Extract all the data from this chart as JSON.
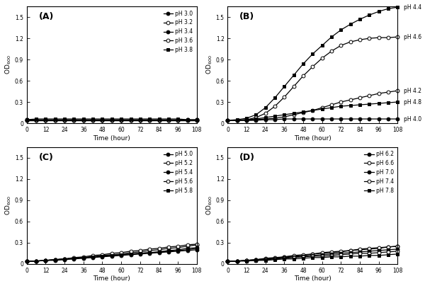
{
  "time": [
    0,
    6,
    12,
    18,
    24,
    30,
    36,
    42,
    48,
    54,
    60,
    66,
    72,
    78,
    84,
    90,
    96,
    102,
    108
  ],
  "panel_A": {
    "label": "(A)",
    "ylabel": "OD$_{600}$",
    "xlabel": "Time (hour)",
    "ylim": [
      0,
      1.65
    ],
    "yticks": [
      0,
      0.3,
      0.6,
      0.9,
      1.2,
      1.5
    ],
    "legend_loc": "upper right",
    "inline_labels": false,
    "series": [
      {
        "name": "pH 3.0",
        "marker": "o",
        "filled": true,
        "data": [
          0.04,
          0.04,
          0.04,
          0.04,
          0.04,
          0.04,
          0.04,
          0.04,
          0.04,
          0.04,
          0.04,
          0.04,
          0.04,
          0.04,
          0.04,
          0.04,
          0.04,
          0.04,
          0.04
        ]
      },
      {
        "name": "pH 3.2",
        "marker": "o",
        "filled": false,
        "data": [
          0.04,
          0.04,
          0.04,
          0.04,
          0.04,
          0.04,
          0.04,
          0.04,
          0.04,
          0.04,
          0.04,
          0.04,
          0.04,
          0.04,
          0.04,
          0.04,
          0.04,
          0.04,
          0.04
        ]
      },
      {
        "name": "pH 3.4",
        "marker": "o",
        "filled": true,
        "data": [
          0.05,
          0.05,
          0.05,
          0.05,
          0.05,
          0.05,
          0.05,
          0.05,
          0.05,
          0.05,
          0.05,
          0.05,
          0.05,
          0.05,
          0.05,
          0.05,
          0.05,
          0.05,
          0.05
        ]
      },
      {
        "name": "pH 3.6",
        "marker": "o",
        "filled": false,
        "data": [
          0.05,
          0.05,
          0.05,
          0.05,
          0.05,
          0.05,
          0.05,
          0.05,
          0.05,
          0.05,
          0.05,
          0.05,
          0.05,
          0.05,
          0.05,
          0.05,
          0.05,
          0.05,
          0.05
        ]
      },
      {
        "name": "pH 3.8",
        "marker": "s",
        "filled": true,
        "data": [
          0.05,
          0.06,
          0.06,
          0.06,
          0.06,
          0.06,
          0.06,
          0.06,
          0.06,
          0.06,
          0.06,
          0.06,
          0.06,
          0.06,
          0.06,
          0.06,
          0.06,
          0.05,
          0.05
        ]
      }
    ]
  },
  "panel_B": {
    "label": "(B)",
    "ylabel": "OD$_{600}$",
    "xlabel": "Time (hour)",
    "ylim": [
      0,
      1.65
    ],
    "yticks": [
      0,
      0.3,
      0.6,
      0.9,
      1.2,
      1.5
    ],
    "legend_loc": "upper right",
    "inline_labels": true,
    "series": [
      {
        "name": "pH 4.4",
        "marker": "s",
        "filled": true,
        "data": [
          0.04,
          0.05,
          0.07,
          0.12,
          0.22,
          0.36,
          0.52,
          0.68,
          0.84,
          0.98,
          1.1,
          1.22,
          1.32,
          1.4,
          1.47,
          1.53,
          1.58,
          1.62,
          1.64
        ]
      },
      {
        "name": "pH 4.6",
        "marker": "o",
        "filled": false,
        "data": [
          0.04,
          0.04,
          0.05,
          0.08,
          0.14,
          0.24,
          0.37,
          0.52,
          0.67,
          0.8,
          0.92,
          1.02,
          1.1,
          1.15,
          1.18,
          1.2,
          1.21,
          1.21,
          1.22
        ]
      },
      {
        "name": "pH 4.2",
        "marker": "o",
        "filled": false,
        "data": [
          0.04,
          0.04,
          0.04,
          0.05,
          0.06,
          0.07,
          0.09,
          0.12,
          0.15,
          0.18,
          0.22,
          0.26,
          0.3,
          0.33,
          0.36,
          0.39,
          0.42,
          0.44,
          0.46
        ]
      },
      {
        "name": "pH 4.8",
        "marker": "s",
        "filled": true,
        "data": [
          0.04,
          0.04,
          0.05,
          0.06,
          0.08,
          0.1,
          0.12,
          0.14,
          0.16,
          0.18,
          0.2,
          0.22,
          0.24,
          0.25,
          0.26,
          0.27,
          0.28,
          0.29,
          0.3
        ]
      },
      {
        "name": "pH 4.0",
        "marker": "o",
        "filled": true,
        "data": [
          0.04,
          0.04,
          0.04,
          0.04,
          0.05,
          0.05,
          0.06,
          0.06,
          0.06,
          0.06,
          0.06,
          0.06,
          0.06,
          0.06,
          0.06,
          0.06,
          0.06,
          0.06,
          0.06
        ]
      }
    ]
  },
  "panel_C": {
    "label": "(C)",
    "ylabel": "OD$_{600}$",
    "xlabel": "Time (hour)",
    "ylim": [
      0,
      1.65
    ],
    "yticks": [
      0,
      0.3,
      0.6,
      0.9,
      1.2,
      1.5
    ],
    "legend_loc": "upper right",
    "inline_labels": false,
    "series": [
      {
        "name": "pH 5.0",
        "marker": "o",
        "filled": true,
        "data": [
          0.04,
          0.04,
          0.05,
          0.05,
          0.06,
          0.07,
          0.08,
          0.09,
          0.1,
          0.11,
          0.12,
          0.13,
          0.14,
          0.15,
          0.16,
          0.17,
          0.18,
          0.19,
          0.2
        ]
      },
      {
        "name": "pH 5.2",
        "marker": "o",
        "filled": false,
        "data": [
          0.04,
          0.04,
          0.05,
          0.06,
          0.07,
          0.08,
          0.09,
          0.1,
          0.12,
          0.13,
          0.14,
          0.16,
          0.17,
          0.19,
          0.2,
          0.22,
          0.23,
          0.25,
          0.27
        ]
      },
      {
        "name": "pH 5.4",
        "marker": "o",
        "filled": true,
        "data": [
          0.04,
          0.04,
          0.05,
          0.06,
          0.07,
          0.08,
          0.09,
          0.1,
          0.11,
          0.12,
          0.13,
          0.14,
          0.15,
          0.16,
          0.17,
          0.19,
          0.2,
          0.22,
          0.23
        ]
      },
      {
        "name": "pH 5.6",
        "marker": "o",
        "filled": false,
        "data": [
          0.04,
          0.04,
          0.05,
          0.06,
          0.07,
          0.09,
          0.1,
          0.12,
          0.13,
          0.15,
          0.16,
          0.18,
          0.19,
          0.21,
          0.22,
          0.24,
          0.25,
          0.27,
          0.28
        ]
      },
      {
        "name": "pH 5.8",
        "marker": "s",
        "filled": true,
        "data": [
          0.04,
          0.04,
          0.05,
          0.06,
          0.07,
          0.08,
          0.09,
          0.1,
          0.11,
          0.12,
          0.13,
          0.14,
          0.15,
          0.16,
          0.17,
          0.18,
          0.19,
          0.2,
          0.22
        ]
      }
    ]
  },
  "panel_D": {
    "label": "(D)",
    "ylabel": "OD$_{600}$",
    "xlabel": "Time (hour)",
    "ylim": [
      0,
      1.65
    ],
    "yticks": [
      0,
      0.3,
      0.6,
      0.9,
      1.2,
      1.5
    ],
    "legend_loc": "upper right",
    "inline_labels": false,
    "series": [
      {
        "name": "pH 6.2",
        "marker": "o",
        "filled": true,
        "data": [
          0.04,
          0.04,
          0.05,
          0.06,
          0.07,
          0.08,
          0.1,
          0.11,
          0.12,
          0.14,
          0.15,
          0.16,
          0.17,
          0.19,
          0.2,
          0.21,
          0.22,
          0.24,
          0.25
        ]
      },
      {
        "name": "pH 6.6",
        "marker": "o",
        "filled": false,
        "data": [
          0.04,
          0.04,
          0.05,
          0.06,
          0.08,
          0.09,
          0.1,
          0.12,
          0.13,
          0.14,
          0.16,
          0.17,
          0.18,
          0.19,
          0.21,
          0.22,
          0.23,
          0.24,
          0.25
        ]
      },
      {
        "name": "pH 7.0",
        "marker": "o",
        "filled": true,
        "data": [
          0.04,
          0.04,
          0.05,
          0.06,
          0.07,
          0.08,
          0.09,
          0.1,
          0.11,
          0.12,
          0.13,
          0.14,
          0.15,
          0.16,
          0.17,
          0.18,
          0.19,
          0.2,
          0.21
        ]
      },
      {
        "name": "pH 7.4",
        "marker": "o",
        "filled": false,
        "data": [
          0.04,
          0.04,
          0.05,
          0.05,
          0.06,
          0.07,
          0.08,
          0.09,
          0.1,
          0.11,
          0.11,
          0.12,
          0.13,
          0.14,
          0.15,
          0.15,
          0.16,
          0.17,
          0.18
        ]
      },
      {
        "name": "pH 7.8",
        "marker": "s",
        "filled": true,
        "data": [
          0.04,
          0.04,
          0.04,
          0.05,
          0.05,
          0.06,
          0.07,
          0.07,
          0.08,
          0.09,
          0.09,
          0.1,
          0.1,
          0.11,
          0.11,
          0.12,
          0.12,
          0.13,
          0.14
        ]
      }
    ]
  },
  "xticks": [
    0,
    12,
    24,
    36,
    48,
    60,
    72,
    84,
    96,
    108
  ],
  "color": "black",
  "linewidth": 0.9,
  "markersize": 3.5
}
